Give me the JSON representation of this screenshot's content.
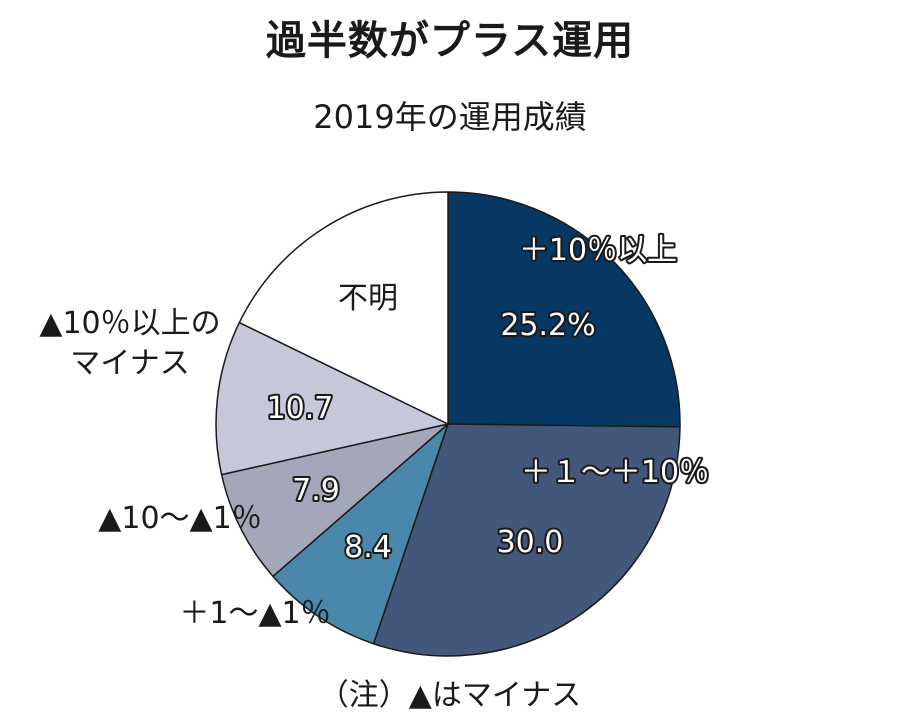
{
  "title": "過半数がプラス運用",
  "subtitle": "2019年の運用成績",
  "note": "（注）▲はマイナス",
  "chart_data": {
    "type": "pie",
    "title": "過半数がプラス運用",
    "subtitle": "2019年の運用成績",
    "unit": "%",
    "start_angle_deg": 0,
    "direction": "clockwise",
    "slices": [
      {
        "label": "＋10％以上",
        "value": 25.2,
        "value_text": "25.2%",
        "color": "#073763"
      },
      {
        "label": "＋１～＋10％",
        "value": 30.0,
        "value_text": "30.0",
        "color": "#42577a"
      },
      {
        "label": "＋1～▲1％",
        "value": 8.4,
        "value_text": "8.4",
        "color": "#4a88ab"
      },
      {
        "label": "▲10～▲1％",
        "value": 7.9,
        "value_text": "7.9",
        "color": "#a4a6ba"
      },
      {
        "label": "▲10％以上のマイナス",
        "label_lines": [
          "▲10％以上の",
          "マイナス"
        ],
        "value": 10.7,
        "value_text": "10.7",
        "color": "#c6c8da"
      },
      {
        "label": "不明",
        "value": 17.8,
        "value_text": "",
        "color": "#ffffff"
      }
    ]
  }
}
